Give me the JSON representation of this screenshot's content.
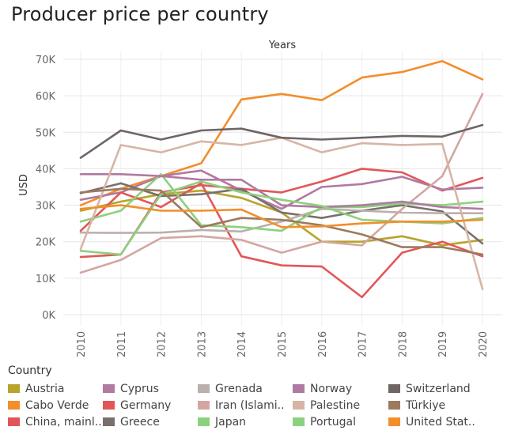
{
  "title": "Producer price per country",
  "chart_data": {
    "type": "line",
    "title": "Producer price per country",
    "top_axis_label": "Years",
    "ylabel": "USD",
    "xlabel": "",
    "x": [
      "2010",
      "2011",
      "2012",
      "2013",
      "2014",
      "2015",
      "2016",
      "2017",
      "2018",
      "2019",
      "2020"
    ],
    "ylim": [
      0,
      72000
    ],
    "yticks": [
      0,
      10000,
      20000,
      30000,
      40000,
      50000,
      60000,
      70000
    ],
    "ytick_labels": [
      "0K",
      "10K",
      "20K",
      "30K",
      "40K",
      "50K",
      "60K",
      "70K"
    ],
    "grid": true,
    "legend_title": "Country",
    "legend_placement": "bottom",
    "series": [
      {
        "name": "Austria",
        "color": "#b8a32b",
        "values": [
          28500,
          31000,
          33000,
          34000,
          32000,
          28000,
          20000,
          20000,
          21500,
          19000,
          20500
        ]
      },
      {
        "name": "Cabo Verde",
        "color": "#f28e2b",
        "values": [
          30000,
          34500,
          38000,
          41500,
          59000,
          60500,
          58800,
          65000,
          66500,
          69500,
          64500
        ]
      },
      {
        "name": "China, mainl..",
        "color": "#e15759",
        "values": [
          15800,
          16500,
          33500,
          35500,
          34500,
          33500,
          36500,
          40000,
          39000,
          34000,
          37500
        ]
      },
      {
        "name": "Cyprus",
        "color": "#b07aa1",
        "values": [
          31500,
          33500,
          38000,
          39500,
          34000,
          29000,
          35000,
          35800,
          37800,
          34300,
          34800
        ]
      },
      {
        "name": "Germany",
        "color": "#e15759",
        "values": [
          23000,
          33500,
          29500,
          36000,
          16000,
          13500,
          13200,
          4800,
          17000,
          20000,
          16000
        ]
      },
      {
        "name": "Greece",
        "color": "#79706e",
        "values": [
          33300,
          36000,
          32500,
          33000,
          34500,
          28000,
          26500,
          28500,
          30000,
          28300,
          19500
        ]
      },
      {
        "name": "Grenada",
        "color": "#bab0ac",
        "values": [
          22500,
          22400,
          22500,
          23200,
          22800,
          25500,
          29000,
          28500,
          28000,
          27800,
          27800
        ]
      },
      {
        "name": "Iran (Islami..",
        "color": "#d4a6a2",
        "values": [
          11500,
          15000,
          21000,
          21500,
          20500,
          17000,
          20000,
          19000,
          29000,
          38000,
          60500
        ]
      },
      {
        "name": "Japan",
        "color": "#8cd17d",
        "values": [
          25500,
          28500,
          38500,
          24500,
          24000,
          23000,
          29500,
          29500,
          30500,
          30000,
          31000
        ]
      },
      {
        "name": "Norway",
        "color": "#b07aa1",
        "values": [
          38500,
          38500,
          38000,
          37000,
          37000,
          30000,
          29500,
          30000,
          31000,
          29500,
          29000
        ]
      },
      {
        "name": "Palestine",
        "color": "#d7b5a6",
        "values": [
          18000,
          46500,
          44500,
          47500,
          46500,
          48500,
          44500,
          47000,
          46500,
          46800,
          7000
        ]
      },
      {
        "name": "Portugal",
        "color": "#8cd17d",
        "values": [
          17500,
          16500,
          33000,
          36500,
          33500,
          31500,
          29800,
          26000,
          25500,
          25000,
          26500
        ]
      },
      {
        "name": "Switzerland",
        "color": "#6f6565",
        "values": [
          43000,
          50500,
          48000,
          50500,
          51000,
          48500,
          48000,
          48500,
          49000,
          48800,
          52000
        ]
      },
      {
        "name": "Türkiye",
        "color": "#9c7a60",
        "values": [
          33500,
          34500,
          34000,
          24000,
          26500,
          26000,
          24500,
          22000,
          18500,
          18500,
          16500
        ]
      },
      {
        "name": "United Stat..",
        "color": "#f28e2b",
        "values": [
          29000,
          30000,
          28500,
          28500,
          28800,
          24000,
          24200,
          25000,
          25500,
          25500,
          26000
        ]
      }
    ]
  },
  "legend": {
    "title": "Country",
    "items": [
      {
        "label": "Austria",
        "color": "#b8a32b"
      },
      {
        "label": "Cyprus",
        "color": "#b07aa1"
      },
      {
        "label": "Grenada",
        "color": "#bab0ac"
      },
      {
        "label": "Norway",
        "color": "#b07aa1"
      },
      {
        "label": "Switzerland",
        "color": "#6f6565"
      },
      {
        "label": "Cabo Verde",
        "color": "#f28e2b"
      },
      {
        "label": "Germany",
        "color": "#e15759"
      },
      {
        "label": "Iran (Islami..",
        "color": "#d4a6a2"
      },
      {
        "label": "Palestine",
        "color": "#d7b5a6"
      },
      {
        "label": "Türkiye",
        "color": "#9c7a60"
      },
      {
        "label": "China, mainl..",
        "color": "#e15759"
      },
      {
        "label": "Greece",
        "color": "#79706e"
      },
      {
        "label": "Japan",
        "color": "#8cd17d"
      },
      {
        "label": "Portugal",
        "color": "#8cd17d"
      },
      {
        "label": "United Stat..",
        "color": "#f28e2b"
      }
    ]
  }
}
